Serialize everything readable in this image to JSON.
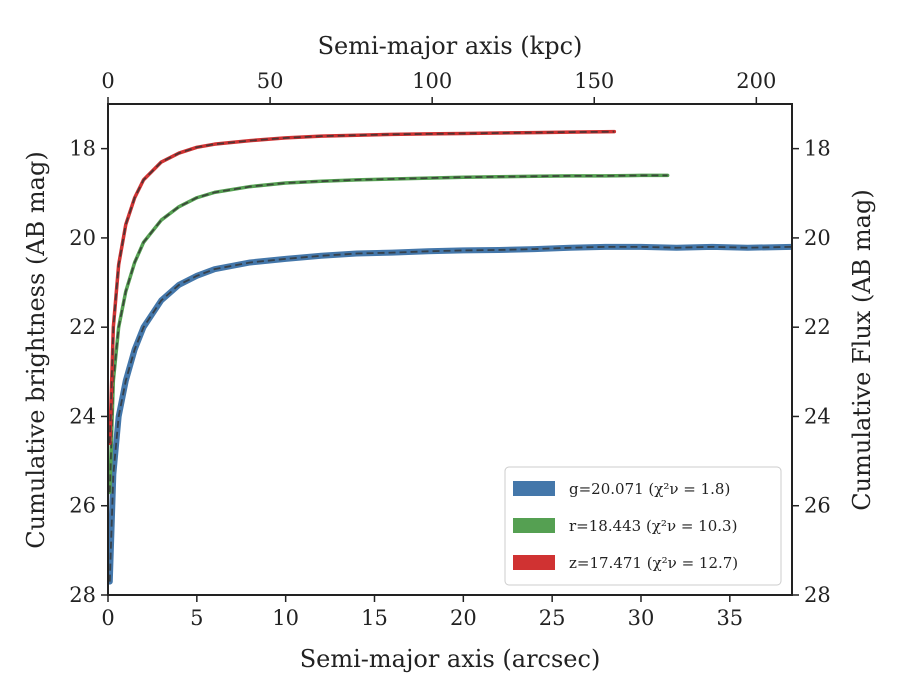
{
  "chart_data": {
    "type": "line",
    "xlabel": "Semi-major axis (arcsec)",
    "x2label": "Semi-major axis (kpc)",
    "ylabel": "Cumulative brightness (AB mag)",
    "y2label": "Cumulative Flux (AB mag)",
    "xlim": [
      0,
      38.5
    ],
    "x2lim": [
      0,
      211
    ],
    "ylim": [
      28,
      17
    ],
    "xticks": [
      0,
      5,
      10,
      15,
      20,
      25,
      30,
      35
    ],
    "x2ticks": [
      0,
      50,
      100,
      150,
      200
    ],
    "yticks": [
      18,
      20,
      22,
      24,
      26,
      28
    ],
    "legend_position": "lower-right",
    "series": [
      {
        "name": "g=20.071",
        "legend_suffix": "(χ²ν = 1.8)",
        "color": "#4477aa",
        "x": [
          0.1,
          0.3,
          0.6,
          1,
          1.5,
          2,
          3,
          4,
          5,
          6,
          8,
          10,
          12,
          14,
          16,
          18,
          20,
          22,
          24,
          26,
          28,
          30,
          32,
          34,
          36,
          38.5
        ],
        "y": [
          27.7,
          25.3,
          24.0,
          23.2,
          22.5,
          22.0,
          21.4,
          21.05,
          20.85,
          20.7,
          20.55,
          20.47,
          20.4,
          20.35,
          20.33,
          20.3,
          20.28,
          20.27,
          20.25,
          20.22,
          20.2,
          20.2,
          20.22,
          20.2,
          20.22,
          20.2
        ]
      },
      {
        "name": "r=18.443",
        "legend_suffix": "(χ²ν = 10.3)",
        "color": "#55a052",
        "x": [
          0.1,
          0.3,
          0.6,
          1,
          1.5,
          2,
          3,
          4,
          5,
          6,
          8,
          10,
          12,
          14,
          16,
          18,
          20,
          22,
          24,
          26,
          28,
          30,
          31.5
        ],
        "y": [
          25.7,
          23.2,
          22.0,
          21.2,
          20.55,
          20.1,
          19.6,
          19.3,
          19.1,
          18.98,
          18.85,
          18.77,
          18.73,
          18.7,
          18.68,
          18.66,
          18.64,
          18.63,
          18.62,
          18.61,
          18.61,
          18.6,
          18.6
        ]
      },
      {
        "name": "z=17.471",
        "legend_suffix": "(χ²ν = 12.7)",
        "color": "#d03232",
        "x": [
          0.1,
          0.3,
          0.6,
          1,
          1.5,
          2,
          3,
          4,
          5,
          6,
          8,
          10,
          12,
          14,
          16,
          18,
          20,
          22,
          24,
          26,
          28.5
        ],
        "y": [
          24.6,
          22.0,
          20.6,
          19.7,
          19.1,
          18.7,
          18.3,
          18.1,
          17.97,
          17.9,
          17.82,
          17.76,
          17.72,
          17.7,
          17.68,
          17.67,
          17.66,
          17.65,
          17.64,
          17.63,
          17.62
        ]
      }
    ]
  }
}
